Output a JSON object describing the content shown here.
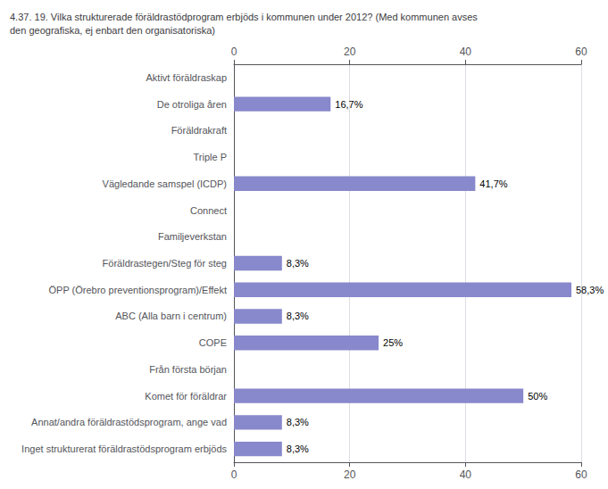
{
  "chart_data": {
    "type": "bar",
    "orientation": "horizontal",
    "title": "4.37. 19. Vilka strukturerade föräldrastödprogram erbjöds i kommunen under 2012? (Med kommunen avses\nden geografiska, ej enbart den organisatoriska)",
    "categories": [
      "Inget strukturerat föräldrastödsprogram erbjöds",
      "Annat/andra föräldrastödsprogram, ange vad",
      "Komet för föräldrar",
      "Från första början",
      "COPE",
      "ABC (Alla barn i centrum)",
      "ÖPP (Örebro preventionsprogram)/Effekt",
      "Föräldrastegen/Steg för steg",
      "Familjeverkstan",
      "Connect",
      "Vägledande samspel (ICDP)",
      "Triple P",
      "Föräldrakraft",
      "De otroliga åren",
      "Aktivt föräldraskap"
    ],
    "values": [
      8.3,
      8.3,
      50.0,
      0.0,
      25.0,
      8.3,
      58.3,
      8.3,
      0.0,
      0.0,
      41.7,
      0.0,
      0.0,
      16.7,
      0.0
    ],
    "value_labels": [
      "8,3%",
      "8,3%",
      "50%",
      null,
      "25%",
      "8,3%",
      "58,3%",
      "8,3%",
      null,
      null,
      "41,7%",
      null,
      null,
      "16,7%",
      null
    ],
    "data_labels": true,
    "color": "#8888cc",
    "xlim": [
      0,
      60
    ],
    "xticks": [
      0,
      20,
      40,
      60
    ],
    "grid": true
  }
}
